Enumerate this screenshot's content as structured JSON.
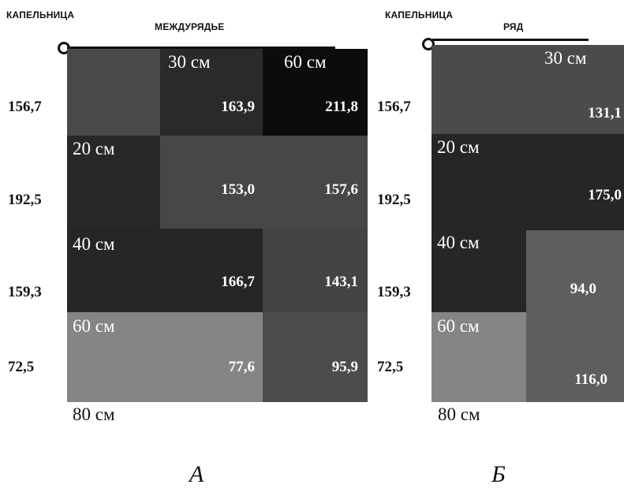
{
  "panel_a": {
    "dripper_label": "КАПЕЛЬНИЦА",
    "spacing_label": "МЕЖДУРЯДЬЕ",
    "col_labels": [
      "30 см",
      "60 см"
    ],
    "row_labels": [
      "20 см",
      "40 см",
      "60 см"
    ],
    "bottom_label": "80 см",
    "row_totals": [
      "156,7",
      "192,5",
      "159,3",
      "72,5"
    ],
    "values": [
      [
        "163,9",
        "211,8"
      ],
      [
        "153,0",
        "157,6"
      ],
      [
        "166,7",
        "143,1"
      ],
      [
        "77,6",
        "95,9"
      ]
    ],
    "caption": "А"
  },
  "panel_b": {
    "dripper_label": "КАПЕЛЬНИЦА",
    "spacing_label": "РЯД",
    "col_labels": [
      "30 см"
    ],
    "row_labels": [
      "20 см",
      "40 см",
      "60 см"
    ],
    "bottom_label": "80 см",
    "row_totals": [
      "156,7",
      "192,5",
      "159,3",
      "72,5"
    ],
    "values": [
      "131,1",
      "175,0",
      "94,0",
      "116,0"
    ],
    "caption": "Б"
  }
}
